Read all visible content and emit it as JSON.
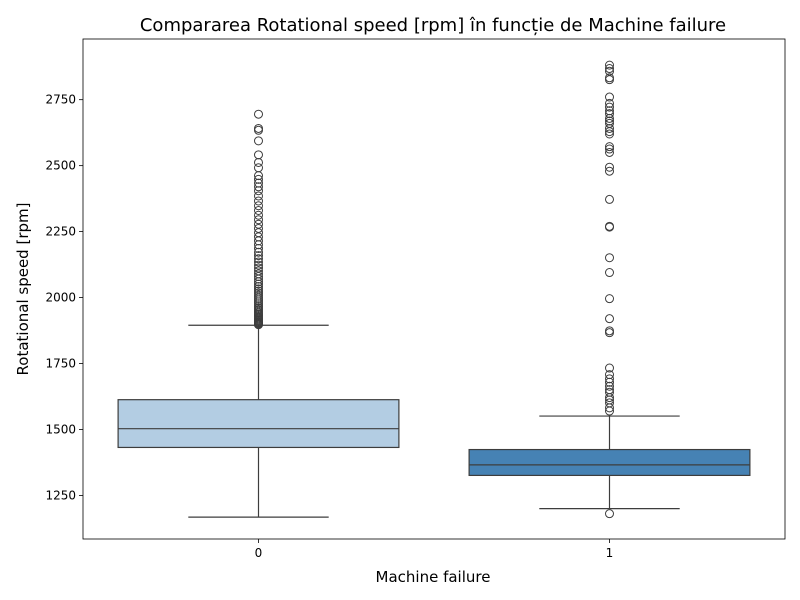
{
  "chart_data": {
    "type": "box",
    "title": "Compararea Rotational speed [rpm] în funcție de Machine failure",
    "xlabel": "Machine failure",
    "ylabel": "Rotational speed [rpm]",
    "categories": [
      "0",
      "1"
    ],
    "ylim": [
      1085,
      2980
    ],
    "yticks": [
      1250,
      1500,
      1750,
      2000,
      2250,
      2500,
      2750
    ],
    "colors": {
      "0": "#b3cde3",
      "1": "#4682b4",
      "line": "#3d3d3d"
    },
    "boxes": [
      {
        "category": "0",
        "whisker_low": 1168,
        "q1": 1432,
        "median": 1503,
        "q3": 1613,
        "whisker_high": 1895,
        "outliers": [
          1897,
          1900,
          1903,
          1906,
          1910,
          1914,
          1918,
          1922,
          1927,
          1932,
          1937,
          1942,
          1948,
          1954,
          1960,
          1966,
          1973,
          1980,
          1987,
          1994,
          2001,
          2009,
          2017,
          2025,
          2033,
          2042,
          2051,
          2060,
          2070,
          2080,
          2090,
          2101,
          2112,
          2123,
          2135,
          2147,
          2159,
          2172,
          2186,
          2200,
          2215,
          2230,
          2246,
          2262,
          2278,
          2295,
          2312,
          2330,
          2348,
          2366,
          2385,
          2405,
          2420,
          2434,
          2448,
          2462,
          2492,
          2512,
          2541,
          2594,
          2634,
          2641,
          2695
        ]
      },
      {
        "category": "1",
        "whisker_low": 1200,
        "q1": 1326,
        "median": 1366,
        "q3": 1424,
        "whisker_high": 1551,
        "outliers": [
          1181,
          1570,
          1582,
          1601,
          1612,
          1621,
          1641,
          1651,
          1664,
          1679,
          1692,
          1708,
          1733,
          1867,
          1874,
          1920,
          1996,
          2095,
          2151,
          2267,
          2270,
          2372,
          2479,
          2494,
          2550,
          2563,
          2572,
          2620,
          2629,
          2641,
          2660,
          2669,
          2679,
          2697,
          2708,
          2722,
          2736,
          2760,
          2826,
          2833,
          2858,
          2868,
          2881
        ]
      }
    ]
  }
}
